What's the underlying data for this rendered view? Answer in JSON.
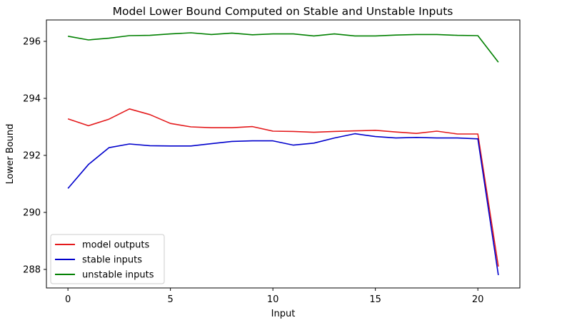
{
  "chart_data": {
    "type": "line",
    "title": "Model Lower Bound Computed on Stable and Unstable Inputs",
    "xlabel": "Input",
    "ylabel": "Lower Bound",
    "x": [
      0,
      1,
      2,
      3,
      4,
      5,
      6,
      7,
      8,
      9,
      10,
      11,
      12,
      13,
      14,
      15,
      16,
      17,
      18,
      19,
      20,
      21
    ],
    "xlim": [
      -1.05,
      22.05
    ],
    "ylim": [
      287.35,
      296.75
    ],
    "xticks": [
      0,
      5,
      10,
      15,
      20
    ],
    "yticks": [
      288,
      290,
      292,
      294,
      296
    ],
    "grid": false,
    "legend_position": "lower-left",
    "series": [
      {
        "name": "model outputs",
        "color": "#e41a1c",
        "values": [
          293.28,
          293.04,
          293.27,
          293.63,
          293.43,
          293.12,
          293.0,
          292.97,
          292.97,
          293.01,
          292.85,
          292.84,
          292.81,
          292.84,
          292.86,
          292.88,
          292.82,
          292.77,
          292.85,
          292.75,
          292.75,
          288.1
        ]
      },
      {
        "name": "stable inputs",
        "color": "#0000cc",
        "values": [
          290.84,
          291.68,
          292.27,
          292.4,
          292.34,
          292.33,
          292.33,
          292.41,
          292.49,
          292.51,
          292.51,
          292.36,
          292.43,
          292.61,
          292.76,
          292.66,
          292.61,
          292.63,
          292.61,
          292.61,
          292.58,
          287.8
        ]
      },
      {
        "name": "unstable inputs",
        "color": "#008000",
        "values": [
          296.18,
          296.05,
          296.11,
          296.2,
          296.21,
          296.26,
          296.3,
          296.24,
          296.29,
          296.23,
          296.26,
          296.26,
          296.19,
          296.26,
          296.19,
          296.19,
          296.22,
          296.24,
          296.24,
          296.21,
          296.2,
          295.27
        ]
      }
    ]
  }
}
